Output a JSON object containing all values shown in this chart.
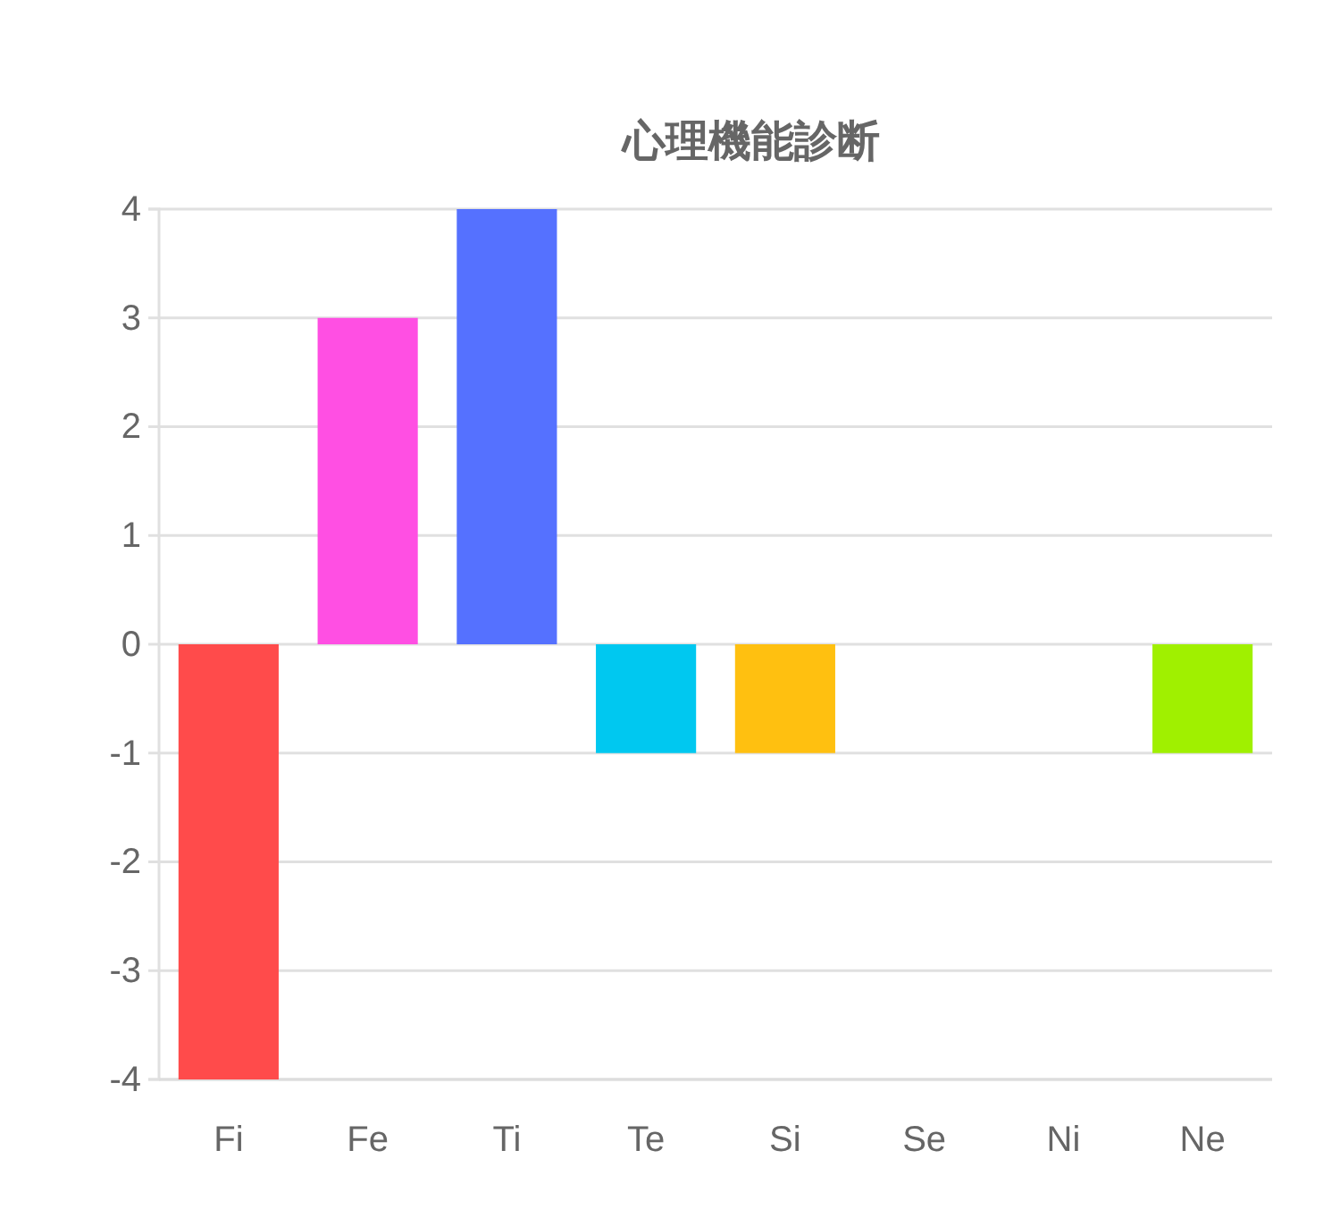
{
  "chart_data": {
    "type": "bar",
    "title": "心理機能診断",
    "categories": [
      "Fi",
      "Fe",
      "Ti",
      "Te",
      "Si",
      "Se",
      "Ni",
      "Ne"
    ],
    "values": [
      -4,
      3,
      4,
      -1,
      -1,
      0,
      0,
      -1
    ],
    "colors": [
      "#ff4b4b",
      "#ff4fe3",
      "#5571ff",
      "#00c8f0",
      "#ffc010",
      "#ff8a2b",
      "#9a5cff",
      "#a0f000"
    ],
    "ylim": [
      -4,
      4
    ],
    "yticks": [
      -4,
      -3,
      -2,
      -1,
      0,
      1,
      2,
      3,
      4
    ],
    "grid": "y",
    "legend": false
  }
}
